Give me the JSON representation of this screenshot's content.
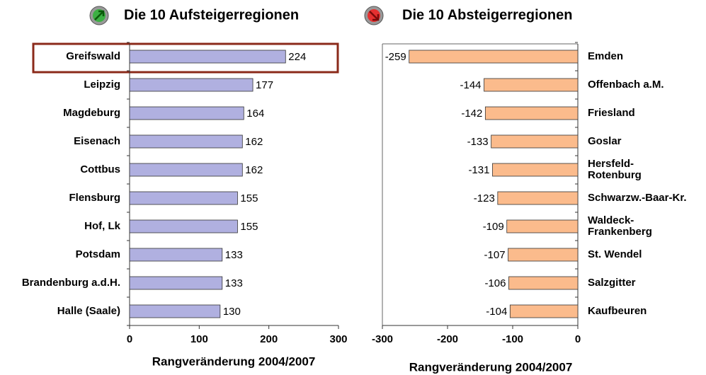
{
  "chart_data": [
    {
      "type": "bar",
      "orientation": "horizontal",
      "title": "Die 10 Aufsteigerregionen",
      "xlabel": "Rangveränderung 2004/2007",
      "categories": [
        "Greifswald",
        "Leipzig",
        "Magdeburg",
        "Eisenach",
        "Cottbus",
        "Flensburg",
        "Hof, Lk",
        "Potsdam",
        "Brandenburg a.d.H.",
        "Halle (Saale)"
      ],
      "values": [
        224,
        177,
        164,
        162,
        162,
        155,
        155,
        133,
        133,
        130
      ],
      "color": "#b0b0e0",
      "xlim": [
        0,
        300
      ],
      "xticks": [
        0,
        100,
        200,
        300
      ]
    },
    {
      "type": "bar",
      "orientation": "horizontal",
      "title": "Die 10 Absteigerregionen",
      "xlabel": "Rangveränderung 2004/2007",
      "categories": [
        "Emden",
        "Offenbach a.M.",
        "Friesland",
        "Goslar",
        "Hersfeld-\nRotenburg",
        "Schwarzw.-Baar-Kr.",
        "Waldeck-\nFrankenberg",
        "St. Wendel",
        "Salzgitter",
        "Kaufbeuren"
      ],
      "values": [
        -259,
        -144,
        -142,
        -133,
        -131,
        -123,
        -109,
        -107,
        -106,
        -104
      ],
      "color": "#fbbb8c",
      "xlim": [
        -300,
        0
      ],
      "xticks": [
        -300,
        -200,
        -100,
        0
      ]
    }
  ]
}
